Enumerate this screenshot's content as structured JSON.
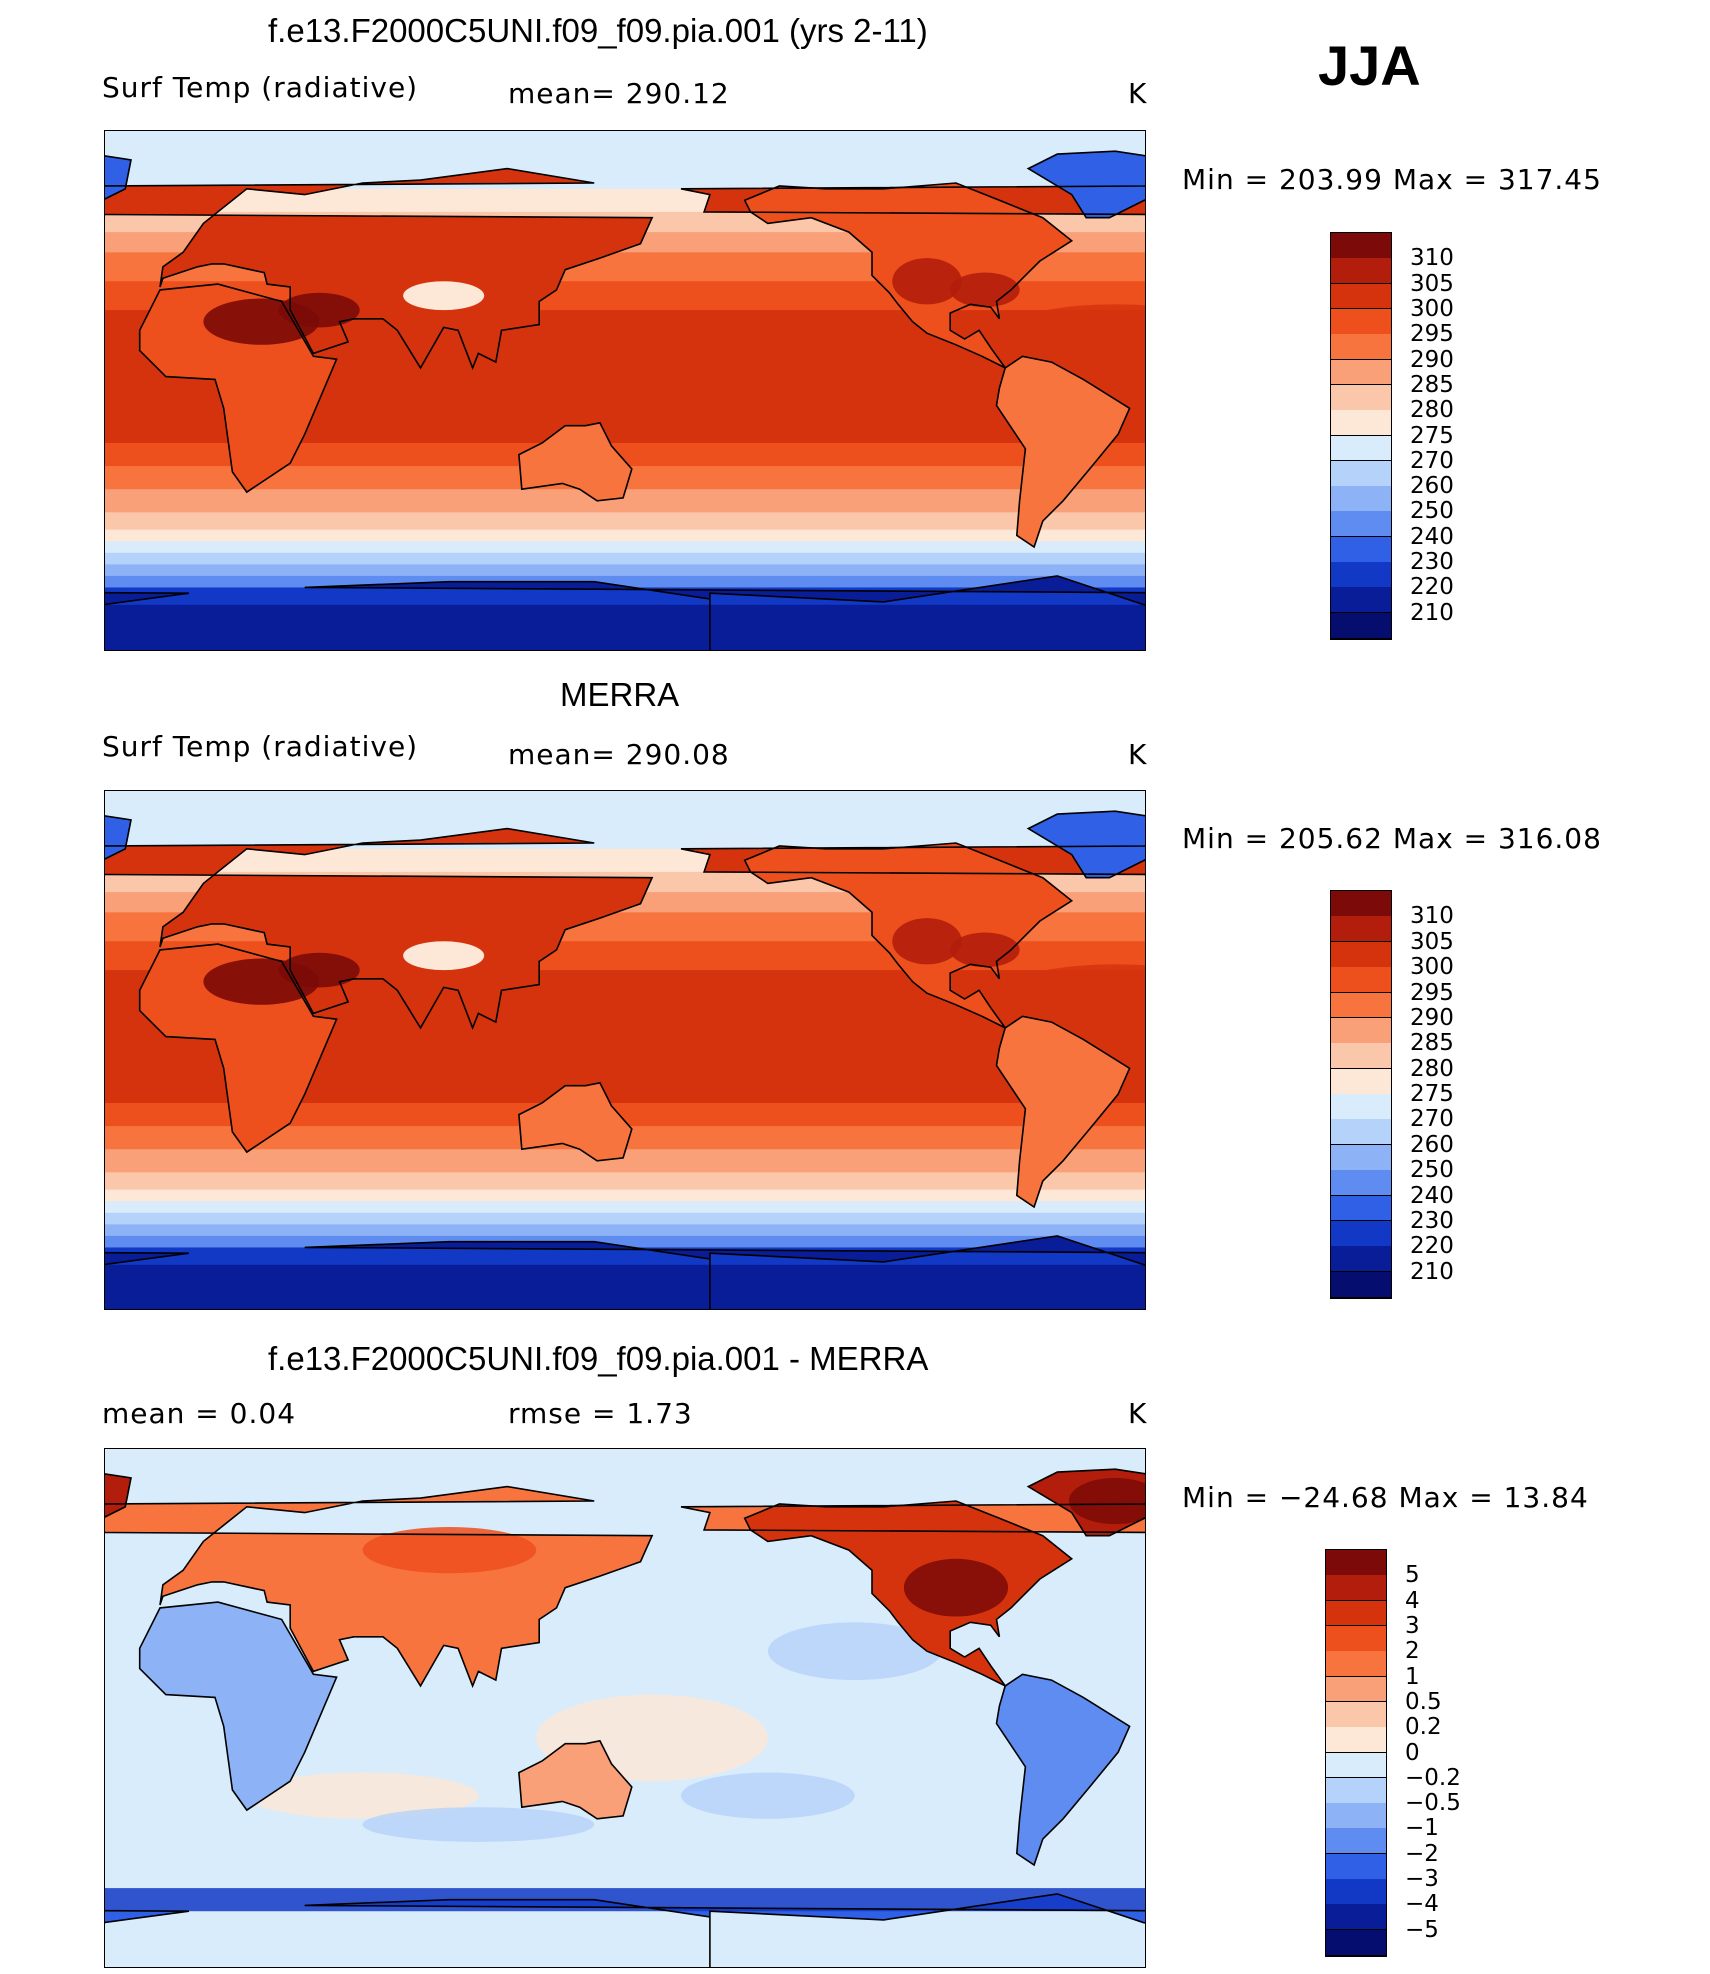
{
  "season": "JJA",
  "units": "K",
  "panels": [
    {
      "title": "f.e13.F2000C5UNI.f09_f09.pia.001 (yrs 2-11)",
      "variable": "Surf Temp (radiative)",
      "stat1": "mean=  290.12",
      "units": "K",
      "minmax": "Min  =  203.99  Max  =  317.45",
      "colorbar": {
        "labels": [
          "310",
          "305",
          "300",
          "295",
          "290",
          "285",
          "280",
          "275",
          "270",
          "260",
          "250",
          "240",
          "230",
          "220",
          "210"
        ],
        "colors": [
          "#7b0a08",
          "#b31d0b",
          "#d5330e",
          "#ed4f1d",
          "#f7743e",
          "#f9a078",
          "#fbc7ab",
          "#fde7d6",
          "#d9ecfb",
          "#b4d2fa",
          "#8db3f6",
          "#5f8cf0",
          "#2f60e6",
          "#1238c6",
          "#0a1d98",
          "#050e6e"
        ]
      },
      "map_kind": "absolute",
      "field_stats": {
        "mean": 290.12,
        "min": 203.99,
        "max": 317.45
      }
    },
    {
      "title": "MERRA",
      "variable": "Surf Temp (radiative)",
      "stat1": "mean=  290.08",
      "units": "K",
      "minmax": "Min  =  205.62  Max  =  316.08",
      "colorbar": {
        "labels": [
          "310",
          "305",
          "300",
          "295",
          "290",
          "285",
          "280",
          "275",
          "270",
          "260",
          "250",
          "240",
          "230",
          "220",
          "210"
        ],
        "colors": [
          "#7b0a08",
          "#b31d0b",
          "#d5330e",
          "#ed4f1d",
          "#f7743e",
          "#f9a078",
          "#fbc7ab",
          "#fde7d6",
          "#d9ecfb",
          "#b4d2fa",
          "#8db3f6",
          "#5f8cf0",
          "#2f60e6",
          "#1238c6",
          "#0a1d98",
          "#050e6e"
        ]
      },
      "map_kind": "absolute",
      "field_stats": {
        "mean": 290.08,
        "min": 205.62,
        "max": 316.08
      }
    },
    {
      "title": "f.e13.F2000C5UNI.f09_f09.pia.001 - MERRA",
      "variable": "mean  =      0.04",
      "stat1": "rmse  =      1.73",
      "units": "K",
      "minmax": "Min  =  −24.68  Max  =    13.84",
      "colorbar": {
        "labels": [
          "5",
          "4",
          "3",
          "2",
          "1",
          "0.5",
          "0.2",
          "0",
          "−0.2",
          "−0.5",
          "−1",
          "−2",
          "−3",
          "−4",
          "−5"
        ],
        "colors": [
          "#7b0a08",
          "#b31d0b",
          "#d5330e",
          "#ed4f1d",
          "#f7743e",
          "#f9a078",
          "#fbc7ab",
          "#fde7d6",
          "#d9ecfb",
          "#b4d2fa",
          "#8db3f6",
          "#5f8cf0",
          "#2f60e6",
          "#1238c6",
          "#0a1d98",
          "#050e6e"
        ]
      },
      "map_kind": "difference",
      "field_stats": {
        "mean": 0.04,
        "rmse": 1.73,
        "min": -24.68,
        "max": 13.84
      }
    }
  ]
}
